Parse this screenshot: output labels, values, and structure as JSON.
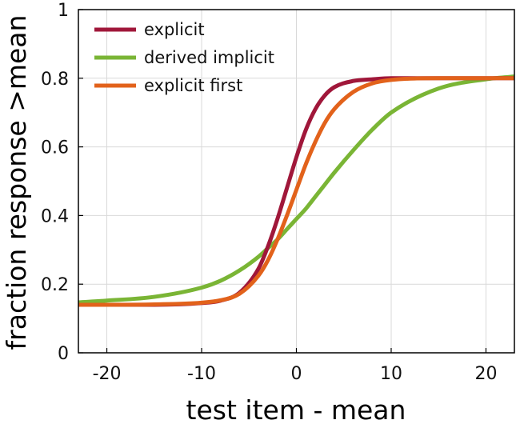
{
  "chart_data": {
    "type": "line",
    "xlabel": "test item - mean",
    "ylabel": "fraction response >mean",
    "xlim": [
      -23,
      23
    ],
    "ylim": [
      0,
      1
    ],
    "xticks": [
      -20,
      -10,
      0,
      10,
      20
    ],
    "xtick_labels": [
      "-20",
      "-10",
      "0",
      "10",
      "20"
    ],
    "yticks": [
      0,
      0.2,
      0.4,
      0.6,
      0.8,
      1
    ],
    "ytick_labels": [
      "0",
      "0.2",
      "0.4",
      "0.6",
      "0.8",
      "1"
    ],
    "grid": true,
    "legend_position": "top-left",
    "x": [
      -23,
      -20,
      -15,
      -10,
      -8,
      -6,
      -4,
      -3,
      -2,
      -1,
      0,
      1,
      2,
      3,
      4,
      6,
      8,
      10,
      15,
      20,
      23
    ],
    "series": [
      {
        "name": "explicit",
        "color": "#a0173a",
        "values": [
          0.14,
          0.14,
          0.14,
          0.145,
          0.152,
          0.175,
          0.245,
          0.31,
          0.39,
          0.48,
          0.57,
          0.65,
          0.71,
          0.75,
          0.774,
          0.792,
          0.797,
          0.8,
          0.8,
          0.8,
          0.8
        ]
      },
      {
        "name": "derived implicit",
        "color": "#7ab535",
        "values": [
          0.147,
          0.152,
          0.163,
          0.19,
          0.21,
          0.24,
          0.28,
          0.305,
          0.33,
          0.36,
          0.39,
          0.42,
          0.455,
          0.49,
          0.525,
          0.59,
          0.65,
          0.7,
          0.77,
          0.797,
          0.805
        ]
      },
      {
        "name": "explicit first",
        "color": "#e2621b",
        "values": [
          0.14,
          0.14,
          0.141,
          0.146,
          0.153,
          0.172,
          0.225,
          0.27,
          0.33,
          0.4,
          0.475,
          0.55,
          0.615,
          0.67,
          0.71,
          0.76,
          0.785,
          0.795,
          0.8,
          0.8,
          0.8
        ]
      }
    ]
  }
}
